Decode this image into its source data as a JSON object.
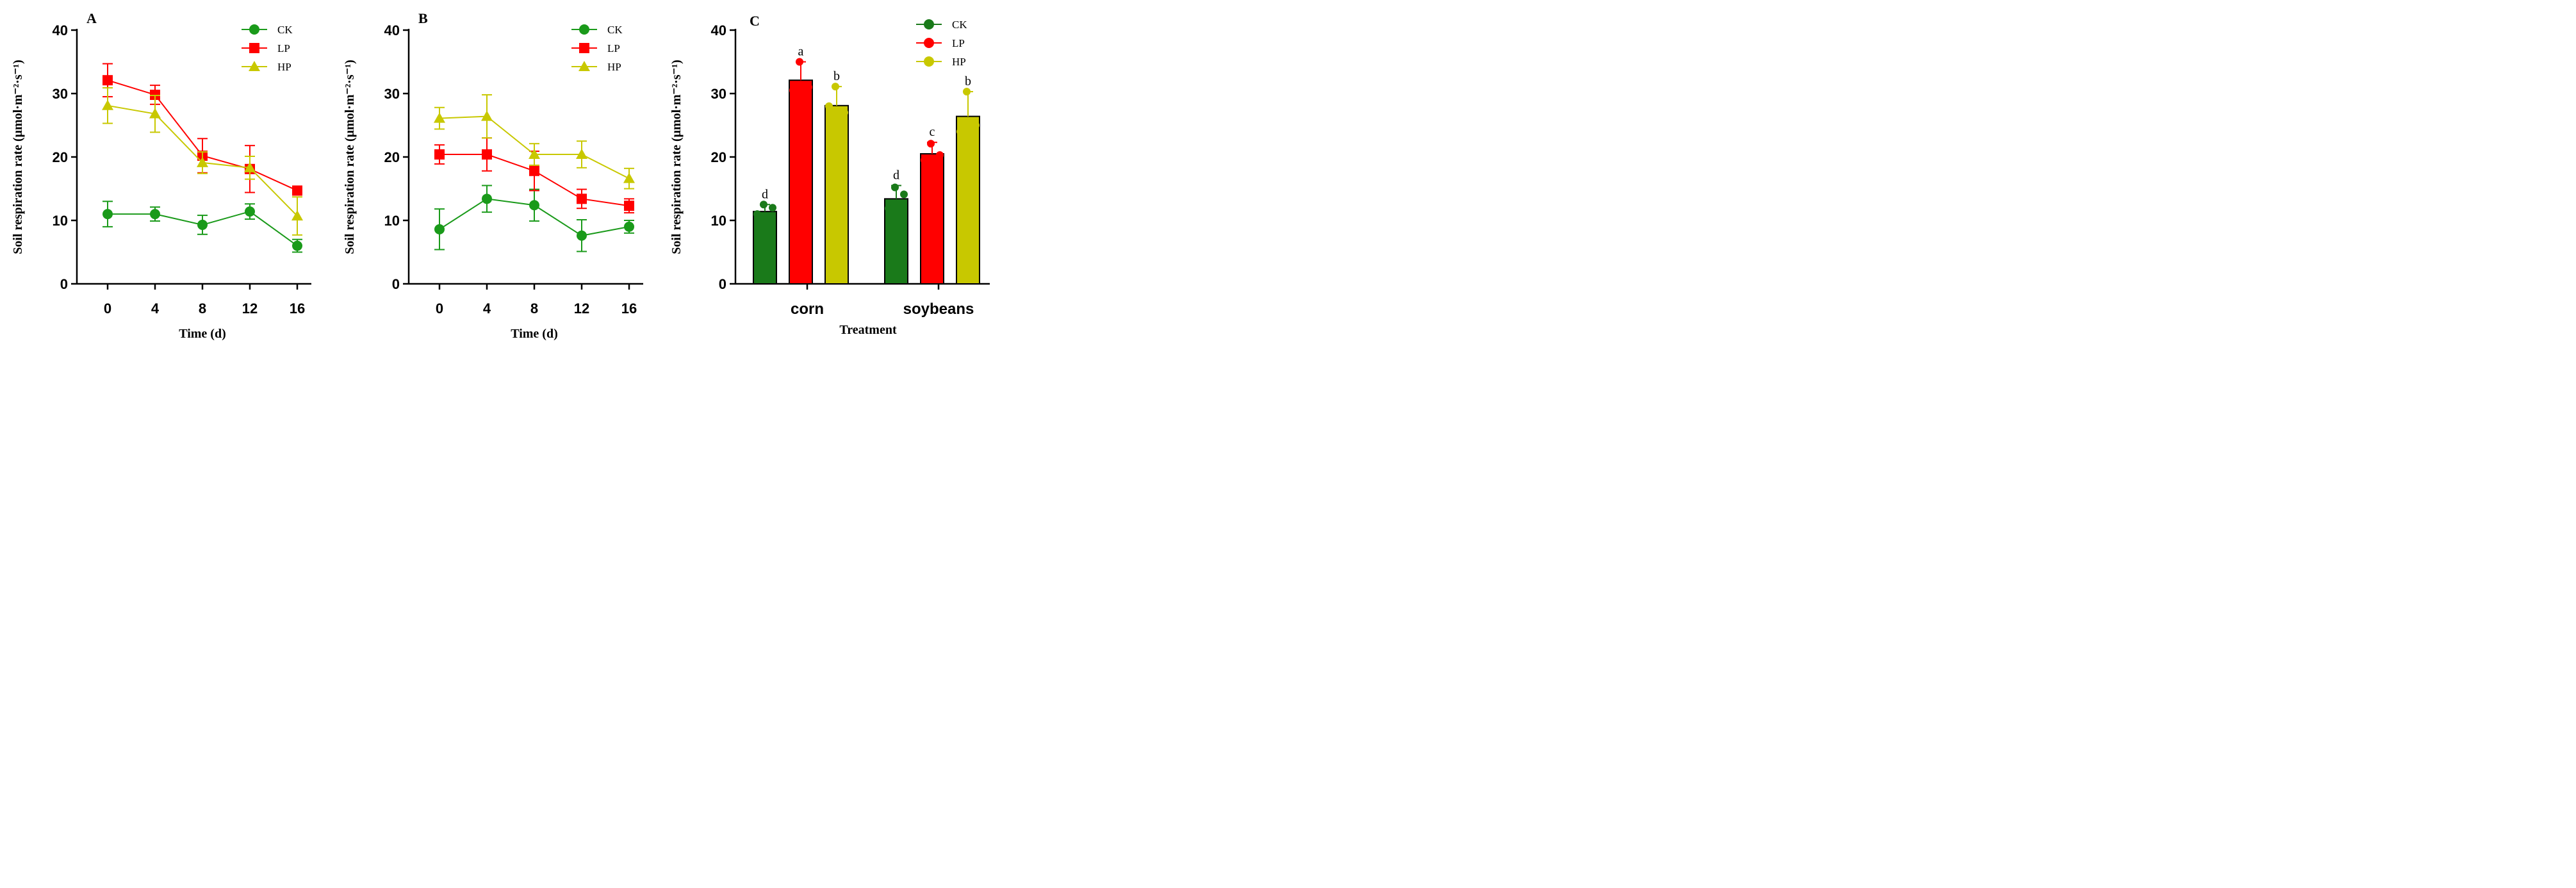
{
  "units_label": "Soil respiration rate (μmol·m⁻²·s⁻¹)",
  "chart_data": [
    {
      "panel": "A",
      "type": "line",
      "xlabel": "Time (d)",
      "ylabel": "Soil respiration rate (μmol·m⁻²·s⁻¹)",
      "x": [
        0,
        4,
        8,
        12,
        16
      ],
      "x_ticks": [
        "0",
        "4",
        "8",
        "12",
        "16"
      ],
      "ylim": [
        0,
        40
      ],
      "y_ticks": [
        0,
        10,
        20,
        30,
        40
      ],
      "legend_position": "top-right",
      "series": [
        {
          "name": "CK",
          "color": "#1a9a1a",
          "marker": "circle",
          "values": [
            11.0,
            11.0,
            9.3,
            11.4,
            6.0
          ],
          "errors": [
            2.0,
            1.1,
            1.5,
            1.2,
            1.0
          ]
        },
        {
          "name": "LP",
          "color": "#ff0000",
          "marker": "square",
          "values": [
            32.1,
            29.8,
            20.2,
            18.1,
            14.7
          ],
          "errors": [
            2.6,
            1.5,
            2.7,
            3.7,
            0.5
          ]
        },
        {
          "name": "HP",
          "color": "#c8c800",
          "marker": "triangle",
          "values": [
            28.1,
            26.8,
            19.1,
            18.3,
            10.7
          ],
          "errors": [
            2.8,
            2.9,
            1.7,
            1.8,
            3.0
          ]
        }
      ]
    },
    {
      "panel": "B",
      "type": "line",
      "xlabel": "Time (d)",
      "ylabel": "Soil respiration rate (μmol·m⁻²·s⁻¹)",
      "x": [
        0,
        4,
        8,
        12,
        16
      ],
      "x_ticks": [
        "0",
        "4",
        "8",
        "12",
        "16"
      ],
      "ylim": [
        0,
        40
      ],
      "y_ticks": [
        0,
        10,
        20,
        30,
        40
      ],
      "legend_position": "top-right",
      "series": [
        {
          "name": "CK",
          "color": "#1a9a1a",
          "marker": "circle",
          "values": [
            8.6,
            13.4,
            12.4,
            7.6,
            9.0
          ],
          "errors": [
            3.2,
            2.1,
            2.5,
            2.5,
            1.0
          ]
        },
        {
          "name": "LP",
          "color": "#ff0000",
          "marker": "square",
          "values": [
            20.4,
            20.4,
            17.8,
            13.4,
            12.3
          ],
          "errors": [
            1.5,
            2.6,
            3.1,
            1.5,
            1.1
          ]
        },
        {
          "name": "HP",
          "color": "#c8c800",
          "marker": "triangle",
          "values": [
            26.1,
            26.4,
            20.4,
            20.4,
            16.6
          ],
          "errors": [
            1.7,
            3.4,
            1.7,
            2.1,
            1.6
          ]
        }
      ]
    },
    {
      "panel": "C",
      "type": "bar",
      "xlabel": "Treatment",
      "ylabel": "Soil respiration rate (μmol·m⁻²·s⁻¹)",
      "categories": [
        "corn",
        "soybeans"
      ],
      "ylim": [
        0,
        40
      ],
      "y_ticks": [
        0,
        10,
        20,
        30,
        40
      ],
      "legend_position": "top-right",
      "series": [
        {
          "name": "CK",
          "color": "#1a7a1a",
          "values": [
            11.4,
            13.4
          ],
          "errors": [
            1.1,
            2.1
          ],
          "letters": [
            "d",
            "d"
          ]
        },
        {
          "name": "LP",
          "color": "#ff0000",
          "values": [
            32.1,
            20.5
          ],
          "errors": [
            2.9,
            1.8
          ],
          "letters": [
            "a",
            "c"
          ]
        },
        {
          "name": "HP",
          "color": "#c8c800",
          "values": [
            28.1,
            26.4
          ],
          "errors": [
            3.0,
            3.9
          ],
          "letters": [
            "b",
            "b"
          ]
        }
      ],
      "replicate_points": [
        [
          [
            12.5,
            11.0,
            12.0
          ],
          [
            15.2,
            11.9,
            14.1
          ]
        ],
        [
          [
            35.0,
            30.5,
            31.0
          ],
          [
            22.1,
            19.5,
            20.3
          ]
        ],
        [
          [
            31.1,
            28.0,
            27.0
          ],
          [
            30.3,
            24.0,
            25.0
          ]
        ]
      ]
    }
  ]
}
